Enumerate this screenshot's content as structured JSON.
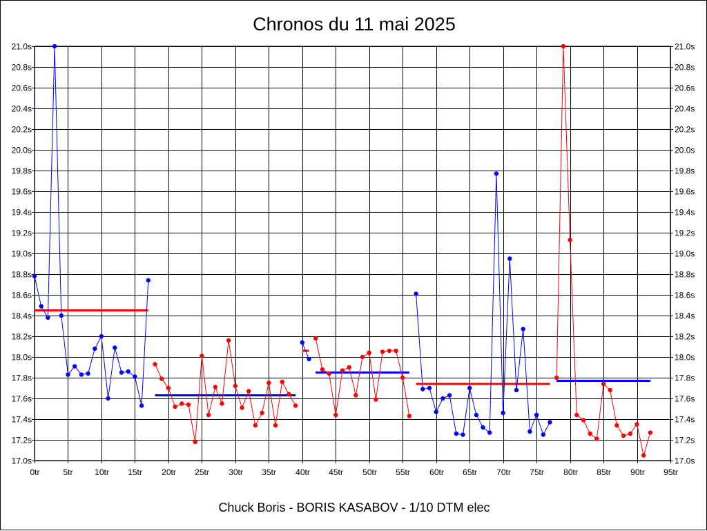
{
  "chart_data": {
    "type": "line",
    "title": "Chronos du 11 mai 2025",
    "subtitle": "Chuck Boris - BORIS KASABOV - 1/10 DTM elec",
    "xlim": [
      0,
      95
    ],
    "ylim": [
      17.0,
      21.0
    ],
    "x_tick_labels": [
      "0tr",
      "5tr",
      "10tr",
      "15tr",
      "20tr",
      "25tr",
      "30tr",
      "35tr",
      "40tr",
      "45tr",
      "50tr",
      "55tr",
      "60tr",
      "65tr",
      "70tr",
      "75tr",
      "80tr",
      "85tr",
      "90tr",
      "95tr"
    ],
    "y_tick_labels": [
      "17.0s",
      "17.2s",
      "17.4s",
      "17.6s",
      "17.8s",
      "18.0s",
      "18.2s",
      "18.4s",
      "18.6s",
      "18.8s",
      "19.0s",
      "19.2s",
      "19.4s",
      "19.6s",
      "19.8s",
      "20.0s",
      "20.2s",
      "20.4s",
      "20.6s",
      "20.8s",
      "21.0s"
    ],
    "grid": true,
    "series": [
      {
        "color": "#0000ff",
        "x": [
          0,
          1,
          2,
          3,
          4,
          5,
          6,
          7,
          8,
          9,
          10,
          11,
          12,
          13,
          14,
          15,
          16,
          17
        ],
        "y": [
          18.78,
          18.49,
          18.38,
          21.0,
          18.4,
          17.83,
          17.91,
          17.83,
          17.84,
          18.08,
          18.2,
          17.6,
          18.09,
          17.85,
          17.86,
          17.81,
          17.53,
          18.74
        ],
        "average": 18.45,
        "average_color": "#ff0000"
      },
      {
        "color": "#ff0000",
        "x": [
          18,
          19,
          20,
          21,
          22,
          23,
          24,
          25,
          26,
          27,
          28,
          29,
          30,
          31,
          32,
          33,
          34,
          35,
          36,
          37,
          38,
          39
        ],
        "y": [
          17.93,
          17.79,
          17.7,
          17.52,
          17.55,
          17.54,
          17.18,
          18.01,
          17.44,
          17.71,
          17.55,
          18.16,
          17.72,
          17.51,
          17.67,
          17.34,
          17.46,
          17.75,
          17.34,
          17.76,
          17.64,
          17.53
        ],
        "average": 17.63,
        "average_color": "#0000ff"
      },
      {
        "color": "#0000ff",
        "x": [
          40,
          41
        ],
        "y": [
          18.14,
          17.98
        ],
        "average": 18.06,
        "average_color": "#ff0000"
      },
      {
        "color": "#ff0000",
        "x": [
          42,
          43,
          44,
          45,
          46,
          47,
          48,
          49,
          50,
          51,
          52,
          53,
          54,
          55,
          56
        ],
        "y": [
          18.18,
          17.88,
          17.84,
          17.44,
          17.87,
          17.9,
          17.63,
          18.0,
          18.04,
          17.59,
          18.05,
          18.06,
          18.06,
          17.8,
          17.43
        ],
        "average": 17.85,
        "average_color": "#0000ff"
      },
      {
        "color": "#0000ff",
        "x": [
          57,
          58,
          59,
          60,
          61,
          62,
          63,
          64,
          65,
          66,
          67,
          68,
          69,
          70,
          71,
          72,
          73,
          74,
          75,
          76,
          77
        ],
        "y": [
          18.61,
          17.69,
          17.7,
          17.47,
          17.6,
          17.63,
          17.26,
          17.25,
          17.7,
          17.44,
          17.32,
          17.27,
          19.77,
          17.46,
          18.95,
          17.68,
          18.27,
          17.28,
          17.44,
          17.25,
          17.37
        ],
        "average": 17.74,
        "average_color": "#ff0000"
      },
      {
        "color": "#ff0000",
        "x": [
          78,
          79,
          80,
          81,
          82,
          83,
          84,
          85,
          86,
          87,
          88,
          89,
          90,
          91,
          92
        ],
        "y": [
          17.8,
          21.0,
          19.13,
          17.44,
          17.39,
          17.26,
          17.21,
          17.74,
          17.68,
          17.34,
          17.24,
          17.26,
          17.35,
          17.05,
          17.27
        ],
        "average": 17.77,
        "average_color": "#0000ff"
      }
    ]
  }
}
